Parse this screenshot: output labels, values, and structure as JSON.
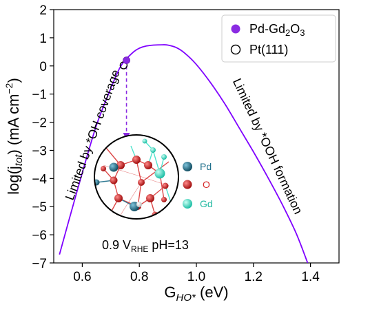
{
  "chart_data": {
    "type": "line",
    "xlabel": "G",
    "xlabel_sub": "HO*",
    "xlabel_unit": "(eV)",
    "ylabel": "log(j",
    "ylabel_sub": "tot",
    "ylabel_unit": ") (mA cm",
    "ylabel_sup": "−2",
    "ylabel_end": ")",
    "xlim": [
      0.5,
      1.5
    ],
    "ylim": [
      -7,
      2
    ],
    "xticks": [
      "0.6",
      "0.8",
      "1.0",
      "1.2",
      "1.4"
    ],
    "xtick_values": [
      0.6,
      0.8,
      1.0,
      1.2,
      1.4
    ],
    "yticks": [
      "2",
      "1",
      "0",
      "−1",
      "−2",
      "−3",
      "−4",
      "−5",
      "−6",
      "−7"
    ],
    "ytick_values": [
      2,
      1,
      0,
      -1,
      -2,
      -3,
      -4,
      -5,
      -6,
      -7
    ],
    "series": [
      {
        "color": "#7f00ff",
        "x": [
          0.52,
          0.55,
          0.6,
          0.65,
          0.7,
          0.73,
          0.75,
          0.78,
          0.8,
          0.82,
          0.85,
          0.88,
          0.9,
          0.93,
          0.96,
          1.0,
          1.05,
          1.1,
          1.15,
          1.2,
          1.25,
          1.3,
          1.35,
          1.39
        ],
        "y": [
          -6.7,
          -5.6,
          -3.8,
          -2.1,
          -0.8,
          -0.1,
          0.2,
          0.5,
          0.63,
          0.7,
          0.74,
          0.75,
          0.74,
          0.65,
          0.45,
          0.05,
          -0.6,
          -1.35,
          -2.2,
          -3.05,
          -3.95,
          -4.9,
          -5.95,
          -7.0
        ]
      }
    ],
    "points": [
      {
        "name": "Pd-Gd2O3",
        "x": 0.755,
        "y": 0.2,
        "color": "#8a2be2",
        "filled": true
      },
      {
        "name": "Pt(111)",
        "x": 0.745,
        "y": 0.02,
        "color": "#000000",
        "filled": false
      }
    ],
    "legend": {
      "placement": "top-right",
      "entries": [
        {
          "label_main": "Pd-Gd",
          "label_sub1": "2",
          "label_mid": "O",
          "label_sub2": "3",
          "marker": "filled",
          "color": "#8a2be2"
        },
        {
          "label_main": "Pt(111)",
          "marker": "open",
          "color": "#000000"
        }
      ]
    },
    "annotations": {
      "left_text": "Limited by *OH coverage",
      "right_text": "Limited by *OOH formation",
      "condition_main": "0.9 V",
      "condition_sub": "RHE",
      "condition_end": " pH=13"
    },
    "arrow": {
      "from": [
        0.755,
        0.1
      ],
      "to": [
        0.755,
        -2.5
      ],
      "color": "#8a2be2"
    },
    "inset_legend": [
      {
        "label": "Pd",
        "color": "#1f6f8b"
      },
      {
        "label": "O",
        "color": "#d62828"
      },
      {
        "label": "Gd",
        "color": "#3ee0c8"
      }
    ],
    "grid": false
  }
}
